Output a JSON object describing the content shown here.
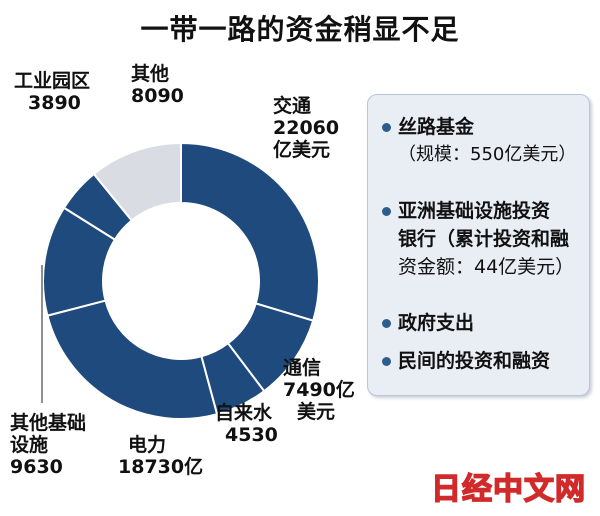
{
  "title": "一带一路的资金稍显不足",
  "chart_data": {
    "type": "donut",
    "colors": {
      "main": "#1f4a7d",
      "other": "#d9dde3",
      "stroke": "#ffffff"
    },
    "slices": [
      {
        "label": "交通",
        "value": 22060,
        "unit": "亿美元"
      },
      {
        "label": "通信",
        "value": 7490,
        "unit": "亿美元"
      },
      {
        "label": "自来水",
        "value": 4530
      },
      {
        "label": "电力",
        "value": 18730,
        "unit": "亿"
      },
      {
        "label": "其他基础设施",
        "value": 9630
      },
      {
        "label": "工业园区",
        "value": 3890
      },
      {
        "label": "其他",
        "value": 8090
      }
    ]
  },
  "labels": {
    "jiaotong": [
      "交通",
      "22060",
      "亿美元"
    ],
    "tongxin": [
      "通信",
      "7490亿",
      "美元"
    ],
    "zilaishui": [
      "自来水",
      "4530"
    ],
    "dianli": [
      "电力",
      "18730亿"
    ],
    "jichu": [
      "其他基础",
      "设施",
      "9630"
    ],
    "gongye": [
      "工业园区",
      "3890"
    ],
    "qita": [
      "其他",
      "8090"
    ]
  },
  "panel": {
    "items": [
      {
        "title": "丝路基金",
        "sub": "（规模：550亿美元）"
      },
      {
        "title": "亚洲基础设施投资",
        "line2": "银行（累计投资和融",
        "line3": "资金额：44亿美元）"
      },
      {
        "title": "政府支出"
      },
      {
        "title": "民间的投资和融资"
      }
    ]
  },
  "watermark": "日经中文网"
}
